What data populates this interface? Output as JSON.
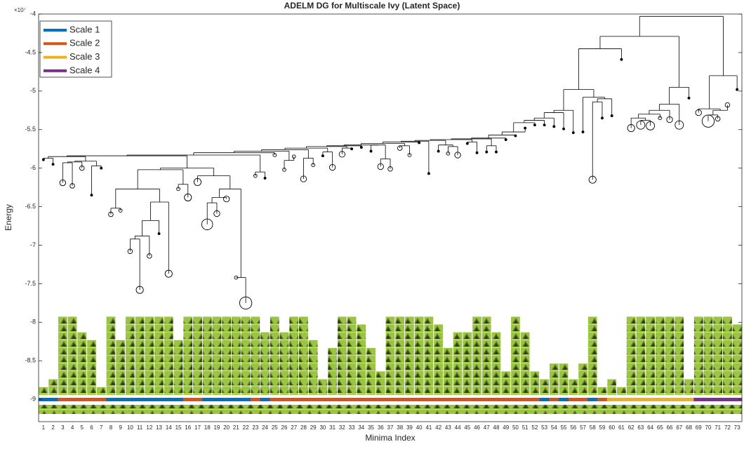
{
  "chart_data": {
    "type": "dendrogram",
    "title": "ADELM DG for Multiscale Ivy (Latent Space)",
    "x_label": "Minima Index",
    "y_label": "Energy",
    "y_multiplier": "×10⁷",
    "categories": [
      "1",
      "2",
      "3",
      "4",
      "5",
      "6",
      "7",
      "8",
      "9",
      "10",
      "11",
      "12",
      "13",
      "14",
      "15",
      "16",
      "17",
      "18",
      "19",
      "20",
      "21",
      "22",
      "23",
      "24",
      "25",
      "26",
      "27",
      "28",
      "29",
      "30",
      "31",
      "32",
      "33",
      "34",
      "35",
      "36",
      "37",
      "38",
      "39",
      "40",
      "41",
      "42",
      "43",
      "44",
      "45",
      "46",
      "47",
      "48",
      "49",
      "50",
      "51",
      "52",
      "53",
      "54",
      "55",
      "56",
      "57",
      "58",
      "59",
      "60",
      "61",
      "62",
      "63",
      "64",
      "65",
      "66",
      "67",
      "68",
      "69",
      "70",
      "71",
      "72",
      "73"
    ],
    "minima": [
      -5.89,
      -5.95,
      -6.19,
      -6.23,
      -6.0,
      -6.35,
      -6.0,
      -6.6,
      -6.55,
      -7.08,
      -7.58,
      -7.14,
      -6.85,
      -7.37,
      -6.27,
      -6.38,
      -6.18,
      -6.73,
      -6.59,
      -6.4,
      -7.42,
      -7.75,
      -6.1,
      -6.13,
      -5.83,
      -6.02,
      -5.85,
      -6.14,
      -5.96,
      -5.84,
      -5.99,
      -5.82,
      -5.75,
      -5.73,
      -5.78,
      -5.98,
      -6.01,
      -5.74,
      -5.83,
      -5.67,
      -6.07,
      -5.78,
      -5.81,
      -5.83,
      -5.68,
      -5.8,
      -5.79,
      -5.79,
      -5.63,
      -5.58,
      -5.48,
      -5.44,
      -5.44,
      -5.46,
      -5.49,
      -5.54,
      -5.53,
      -6.15,
      -5.35,
      -5.32,
      -4.59,
      -5.48,
      -5.44,
      -5.45,
      -5.35,
      -5.37,
      -5.44,
      -5.09,
      -5.28,
      -5.39,
      -5.36,
      -5.18,
      -4.98
    ],
    "minimum_sizes": [
      1,
      1,
      4,
      3,
      3,
      1,
      1,
      3,
      2,
      3,
      5,
      3,
      1,
      5,
      2,
      5,
      5,
      8,
      4,
      4,
      2,
      9,
      2,
      1,
      2,
      2,
      2,
      4,
      2,
      1,
      4,
      4,
      1,
      1,
      1,
      4,
      3,
      3,
      2,
      1,
      1,
      1,
      2,
      4,
      1,
      1,
      1,
      1,
      1,
      1,
      1,
      1,
      1,
      1,
      1,
      1,
      1,
      5,
      1,
      1,
      1,
      5,
      6,
      6,
      2,
      4,
      6,
      1,
      4,
      9,
      3,
      3,
      1
    ],
    "barriers": [
      -5.87,
      -5.85,
      -5.93,
      -5.92,
      -5.91,
      -5.97,
      -5.84,
      -6.52,
      -6.27,
      -6.92,
      -6.88,
      -6.68,
      -6.44,
      -6.02,
      -6.21,
      -6.0,
      -6.1,
      -6.45,
      -6.38,
      -6.27,
      -7.42,
      -5.83,
      -6.05,
      -5.8,
      -5.78,
      -5.9,
      -5.76,
      -5.87,
      -5.74,
      -5.79,
      -5.72,
      -5.74,
      -5.71,
      -5.7,
      -5.7,
      -5.88,
      -5.68,
      -5.71,
      -5.66,
      -5.65,
      -5.64,
      -5.7,
      -5.72,
      -5.63,
      -5.66,
      -5.62,
      -5.71,
      -5.61,
      -5.57,
      -5.53,
      -5.41,
      -5.38,
      -5.35,
      -5.28,
      -5.25,
      -4.98,
      -5.08,
      -5.14,
      -5.1,
      -4.45,
      -4.29,
      -5.35,
      -5.38,
      -5.3,
      -5.25,
      -5.17,
      -4.95,
      -4.03,
      -5.23,
      -5.31,
      -5.25,
      -4.8
    ],
    "thumbnail_rows": [
      1,
      2,
      10,
      10,
      8,
      7,
      1,
      10,
      7,
      10,
      10,
      10,
      10,
      10,
      7,
      10,
      10,
      10,
      10,
      10,
      10,
      10,
      10,
      8,
      10,
      8,
      10,
      10,
      7,
      2,
      6,
      10,
      10,
      9,
      6,
      3,
      10,
      10,
      10,
      10,
      10,
      9,
      6,
      8,
      8,
      10,
      10,
      8,
      3,
      10,
      8,
      3,
      2,
      4,
      4,
      2,
      4,
      10,
      1,
      2,
      1,
      10,
      10,
      10,
      10,
      10,
      10,
      2,
      10,
      10,
      10,
      10,
      9
    ],
    "scale_of_minimum": [
      1,
      1,
      2,
      2,
      2,
      2,
      2,
      1,
      1,
      1,
      1,
      1,
      1,
      1,
      1,
      2,
      2,
      1,
      1,
      1,
      1,
      1,
      2,
      1,
      2,
      2,
      2,
      2,
      2,
      2,
      2,
      2,
      2,
      2,
      2,
      2,
      2,
      2,
      2,
      2,
      2,
      2,
      2,
      2,
      2,
      2,
      2,
      2,
      2,
      2,
      2,
      2,
      1,
      2,
      1,
      2,
      2,
      1,
      2,
      3,
      3,
      3,
      3,
      3,
      3,
      3,
      3,
      3,
      4,
      4,
      4,
      4,
      4
    ],
    "series": [
      {
        "name": "Scale 1",
        "color": "#0072bd"
      },
      {
        "name": "Scale 2",
        "color": "#d95319"
      },
      {
        "name": "Scale 3",
        "color": "#edb120"
      },
      {
        "name": "Scale 4",
        "color": "#7e2f8e"
      }
    ],
    "ylim": [
      -9.29,
      -4
    ],
    "yticks": [
      -9,
      -8.5,
      -8,
      -7.5,
      -7,
      -6.5,
      -6,
      -5.5,
      -5,
      -4.5,
      -4
    ],
    "legend": "northwest",
    "line_color": "#000000"
  }
}
